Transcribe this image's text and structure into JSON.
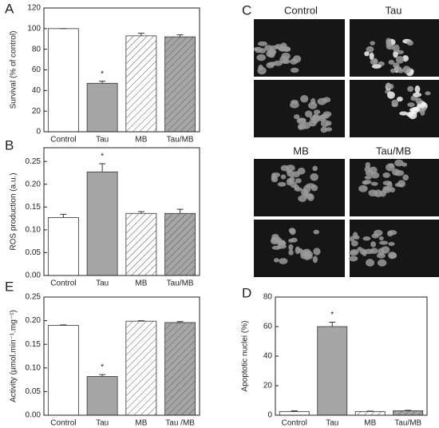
{
  "chart_data": [
    {
      "type": "bar",
      "panel": "A",
      "ylabel": "Survival (% of control)",
      "categories": [
        "Control",
        "Tau",
        "MB",
        "Tau/MB"
      ],
      "values": [
        100,
        47,
        93,
        92
      ],
      "errors": [
        0,
        2,
        2.5,
        2
      ],
      "colors": [
        "#ffffff",
        "#a6a6a6",
        "#ffffff",
        "#a6a6a6"
      ],
      "hatch": [
        false,
        false,
        true,
        true
      ],
      "ylim": [
        0,
        120
      ],
      "yticks": [
        0,
        20,
        40,
        60,
        80,
        100,
        120
      ],
      "annotations": [
        {
          "text": "*",
          "category": "Tau"
        }
      ]
    },
    {
      "type": "bar",
      "panel": "B",
      "ylabel": "ROS production (a.u.)",
      "categories": [
        "Control",
        "Tau",
        "MB",
        "Tau/MB"
      ],
      "values": [
        0.127,
        0.227,
        0.136,
        0.136
      ],
      "errors": [
        0.007,
        0.018,
        0.004,
        0.009
      ],
      "colors": [
        "#ffffff",
        "#a6a6a6",
        "#ffffff",
        "#a6a6a6"
      ],
      "hatch": [
        false,
        false,
        true,
        true
      ],
      "ylim": [
        0,
        0.28
      ],
      "yticks": [
        {
          "value": 0,
          "label": "0.00"
        },
        0.05,
        {
          "value": 0.1,
          "label": "0.10"
        },
        0.15,
        {
          "value": 0.2,
          "label": "0.20"
        },
        0.25
      ],
      "annotations": [
        {
          "text": "*",
          "category": "Tau"
        }
      ]
    },
    {
      "type": "bar",
      "panel": "E",
      "ylabel": "Activity (µmol.min⁻¹.mg⁻¹)",
      "categories": [
        "Control",
        "Tau",
        "MB",
        "Tau /MB"
      ],
      "values": [
        0.19,
        0.082,
        0.199,
        0.196
      ],
      "errors": [
        0.001,
        0.004,
        0.001,
        0.002
      ],
      "colors": [
        "#ffffff",
        "#a6a6a6",
        "#ffffff",
        "#a6a6a6"
      ],
      "hatch": [
        false,
        false,
        true,
        true
      ],
      "ylim": [
        0,
        0.25
      ],
      "yticks": [
        {
          "value": 0,
          "label": "0.00"
        },
        0.05,
        {
          "value": 0.1,
          "label": "0.10"
        },
        0.15,
        {
          "value": 0.2,
          "label": "0.20"
        },
        0.25
      ],
      "annotations": [
        {
          "text": "*",
          "category": "Tau"
        }
      ]
    },
    {
      "type": "bar",
      "panel": "D",
      "ylabel": "Apoptotic nuclei (%)",
      "categories": [
        "Control",
        "Tau",
        "MB",
        "Tau/MB"
      ],
      "values": [
        2.5,
        60,
        2.5,
        3
      ],
      "errors": [
        0.5,
        3,
        0.3,
        0.3
      ],
      "colors": [
        "#ffffff",
        "#a6a6a6",
        "#ffffff",
        "#a6a6a6"
      ],
      "hatch": [
        false,
        false,
        true,
        true
      ],
      "ylim": [
        0,
        80
      ],
      "yticks": [
        0,
        20,
        40,
        60,
        80
      ],
      "annotations": [
        {
          "text": "*",
          "category": "Tau"
        }
      ]
    }
  ],
  "micrographs": {
    "panel": "C",
    "titles": [
      "Control",
      "Tau",
      "MB",
      "Tau/MB"
    ]
  }
}
